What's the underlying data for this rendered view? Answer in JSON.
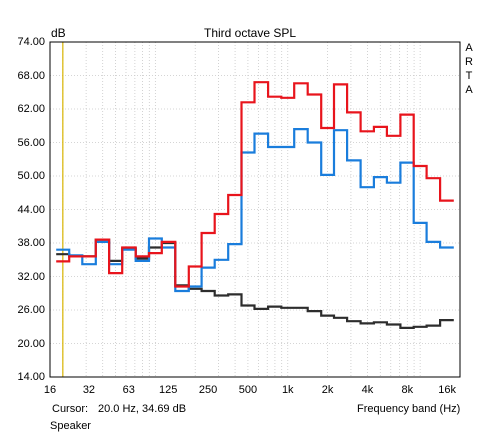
{
  "chart_data": {
    "type": "line",
    "title": "Third octave SPL",
    "ylabel": "dB",
    "xlabel": "Frequency band (Hz)",
    "side_label": [
      "A",
      "R",
      "T",
      "A"
    ],
    "x_scale": "log",
    "xlim": [
      16,
      20000
    ],
    "ylim": [
      14,
      74
    ],
    "grid": true,
    "y_ticks": [
      "74.00",
      "68.00",
      "62.00",
      "56.00",
      "50.00",
      "44.00",
      "38.00",
      "32.00",
      "26.00",
      "20.00",
      "14.00"
    ],
    "x_tick_labels": [
      "16",
      "32",
      "63",
      "125",
      "250",
      "500",
      "1k",
      "2k",
      "4k",
      "8k",
      "16k"
    ],
    "x_tick_values": [
      16,
      31.5,
      63,
      125,
      250,
      500,
      1000,
      2000,
      4000,
      8000,
      16000
    ],
    "bands": [
      20,
      25,
      31.5,
      40,
      50,
      63,
      80,
      100,
      125,
      160,
      200,
      250,
      315,
      400,
      500,
      630,
      800,
      1000,
      1250,
      1600,
      2000,
      2500,
      3150,
      4000,
      5000,
      6300,
      8000,
      10000,
      12500,
      16000
    ],
    "cursor_x": 20,
    "series": [
      {
        "color": "#1a7ddc",
        "values": [
          36.8,
          35.8,
          34.2,
          38.2,
          34.2,
          36.8,
          34.8,
          38.8,
          37.2,
          29.4,
          30.2,
          33.6,
          35.0,
          37.8,
          54.2,
          57.6,
          55.2,
          55.2,
          58.4,
          56.0,
          50.2,
          58.2,
          52.8,
          48.0,
          49.8,
          48.8,
          52.4,
          41.6,
          38.2,
          37.2
        ]
      },
      {
        "color": "#e8141c",
        "values": [
          34.7,
          35.6,
          35.6,
          38.6,
          32.6,
          37.2,
          35.6,
          36.2,
          38.2,
          30.2,
          33.8,
          39.8,
          43.2,
          46.6,
          63.2,
          66.8,
          64.2,
          64.0,
          66.6,
          64.6,
          58.6,
          66.4,
          61.4,
          58.0,
          58.8,
          57.2,
          61.0,
          51.8,
          49.6,
          45.6
        ]
      },
      {
        "color": "#2d2d2d",
        "values": [
          36.0,
          35.6,
          35.6,
          38.6,
          34.8,
          37.0,
          35.2,
          37.2,
          38.0,
          30.4,
          29.8,
          29.4,
          28.6,
          28.8,
          26.8,
          26.2,
          26.6,
          26.4,
          26.4,
          25.8,
          25.0,
          24.6,
          24.0,
          23.6,
          23.8,
          23.4,
          22.8,
          23.0,
          23.2,
          24.2
        ]
      }
    ]
  },
  "footer": {
    "cursor_label": "Cursor:",
    "cursor_value": "20.0 Hz, 34.69 dB",
    "channel": "Speaker"
  }
}
